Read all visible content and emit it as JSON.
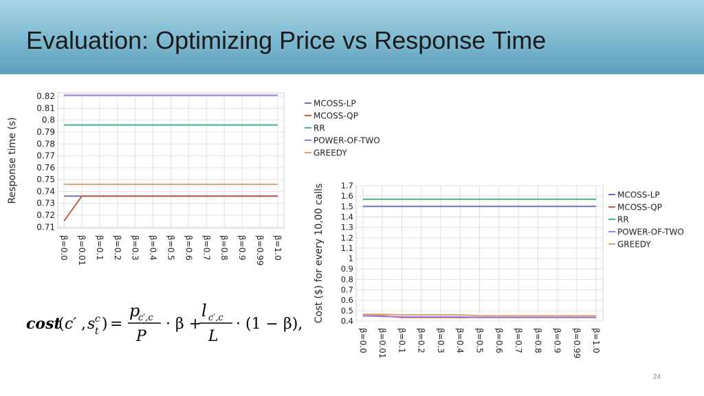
{
  "slide": {
    "title": "Evaluation: Optimizing Price vs Response Time",
    "page_number": "24"
  },
  "formula": {
    "lhs_func": "cost",
    "lhs_args_1": "c′",
    "lhs_args_s": "s",
    "lhs_args_sup": "c",
    "lhs_args_sub": "t",
    "eq": "=",
    "num1_base": "p",
    "num1_sub": "c′,c",
    "den1": "P",
    "mid": "· β +",
    "num2_base": "l",
    "num2_sub": "c′,c",
    "den2": "L",
    "tail": "· (1 − β),"
  },
  "chart_data": [
    {
      "type": "line",
      "title": "",
      "xlabel": "",
      "ylabel": "Response time (s)",
      "categories": [
        "β=0.0",
        "β=0.01",
        "β=0.1",
        "β=0.2",
        "β=0.3",
        "β=0.4",
        "β=0.5",
        "β=0.6",
        "β=0.7",
        "β=0.8",
        "β=0.9",
        "β=0.99",
        "β=1.0"
      ],
      "ylim": [
        0.709,
        0.823
      ],
      "yticks": [
        0.71,
        0.72,
        0.73,
        0.74,
        0.75,
        0.76,
        0.77,
        0.78,
        0.79,
        0.8,
        0.81,
        0.82
      ],
      "ytick_labels": [
        "0.71",
        "0.72",
        "0.73",
        "0.74",
        "0.75",
        "0.76",
        "0.77",
        "0.78",
        "0.79",
        "0.8",
        "0.81",
        "0.82"
      ],
      "grid": true,
      "legend_position": "right",
      "series": [
        {
          "name": "MCOSS-LP",
          "color": "#6b70c0",
          "values": [
            0.736,
            0.736,
            0.736,
            0.736,
            0.736,
            0.736,
            0.736,
            0.736,
            0.736,
            0.736,
            0.736,
            0.736,
            0.736
          ]
        },
        {
          "name": "MCOSS-QP",
          "color": "#c0603f",
          "values": [
            0.715,
            0.736,
            0.736,
            0.736,
            0.736,
            0.736,
            0.736,
            0.736,
            0.736,
            0.736,
            0.736,
            0.736,
            0.736
          ]
        },
        {
          "name": "RR",
          "color": "#3fb68a",
          "values": [
            0.796,
            0.796,
            0.796,
            0.796,
            0.796,
            0.796,
            0.796,
            0.796,
            0.796,
            0.796,
            0.796,
            0.796,
            0.796
          ]
        },
        {
          "name": "POWER-OF-TWO",
          "color": "#a27ddc",
          "values": [
            0.821,
            0.821,
            0.821,
            0.821,
            0.821,
            0.821,
            0.821,
            0.821,
            0.821,
            0.821,
            0.821,
            0.821,
            0.821
          ]
        },
        {
          "name": "GREEDY",
          "color": "#d9a070",
          "values": [
            0.746,
            0.746,
            0.746,
            0.746,
            0.746,
            0.746,
            0.746,
            0.746,
            0.746,
            0.746,
            0.746,
            0.746,
            0.746
          ]
        }
      ]
    },
    {
      "type": "line",
      "title": "",
      "xlabel": "",
      "ylabel": "Cost ($) for every 10,00 calls",
      "categories": [
        "β=0.0",
        "β=0.01",
        "β=0.1",
        "β=0.2",
        "β=0.3",
        "β=0.4",
        "β=0.5",
        "β=0.6",
        "β=0.7",
        "β=0.8",
        "β=0.9",
        "β=0.99",
        "β=1.0"
      ],
      "ylim": [
        0.4,
        1.7
      ],
      "yticks": [
        0.4,
        0.5,
        0.6,
        0.7,
        0.8,
        0.9,
        1.0,
        1.1,
        1.2,
        1.3,
        1.4,
        1.5,
        1.6,
        1.7
      ],
      "ytick_labels": [
        "0.4",
        "0.5",
        "0.6",
        "0.7",
        "0.8",
        "0.9",
        "1",
        "1.1",
        "1.2",
        "1.3",
        "1.4",
        "1.5",
        "1.6",
        "1.7"
      ],
      "grid": true,
      "legend_position": "right",
      "series": [
        {
          "name": "MCOSS-LP",
          "color": "#6b70c0",
          "values": [
            1.5,
            1.5,
            1.5,
            1.5,
            1.5,
            1.5,
            1.5,
            1.5,
            1.5,
            1.5,
            1.5,
            1.5,
            1.5
          ]
        },
        {
          "name": "MCOSS-QP",
          "color": "#c0603f",
          "values": [
            0.45,
            0.45,
            0.435,
            0.435,
            0.435,
            0.435,
            0.435,
            0.435,
            0.435,
            0.435,
            0.435,
            0.435,
            0.435
          ]
        },
        {
          "name": "RR",
          "color": "#3fb68a",
          "values": [
            1.57,
            1.57,
            1.57,
            1.57,
            1.57,
            1.57,
            1.57,
            1.57,
            1.57,
            1.57,
            1.57,
            1.57,
            1.57
          ]
        },
        {
          "name": "POWER-OF-TWO",
          "color": "#a27ddc",
          "values": [
            0.45,
            0.445,
            0.44,
            0.44,
            0.44,
            0.44,
            0.435,
            0.435,
            0.435,
            0.435,
            0.435,
            0.435,
            0.435
          ]
        },
        {
          "name": "GREEDY",
          "color": "#d9a070",
          "values": [
            0.465,
            0.465,
            0.46,
            0.46,
            0.46,
            0.46,
            0.45,
            0.45,
            0.45,
            0.45,
            0.45,
            0.45,
            0.45
          ]
        }
      ]
    }
  ]
}
